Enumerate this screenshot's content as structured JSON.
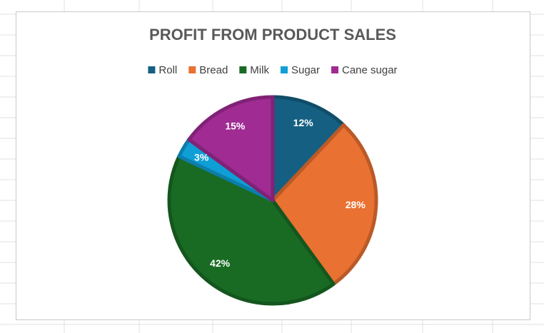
{
  "chart_data": {
    "type": "pie",
    "title": "PROFIT FROM PRODUCT SALES",
    "categories": [
      "Roll",
      "Bread",
      "Milk",
      "Sugar",
      "Cane sugar"
    ],
    "values": [
      12,
      28,
      42,
      3,
      15
    ],
    "value_labels": [
      "12%",
      "28%",
      "42%",
      "3%",
      "15%"
    ],
    "colors": [
      "#156082",
      "#e97132",
      "#196b24",
      "#0f9ed5",
      "#a02b93"
    ],
    "legend": "top"
  }
}
